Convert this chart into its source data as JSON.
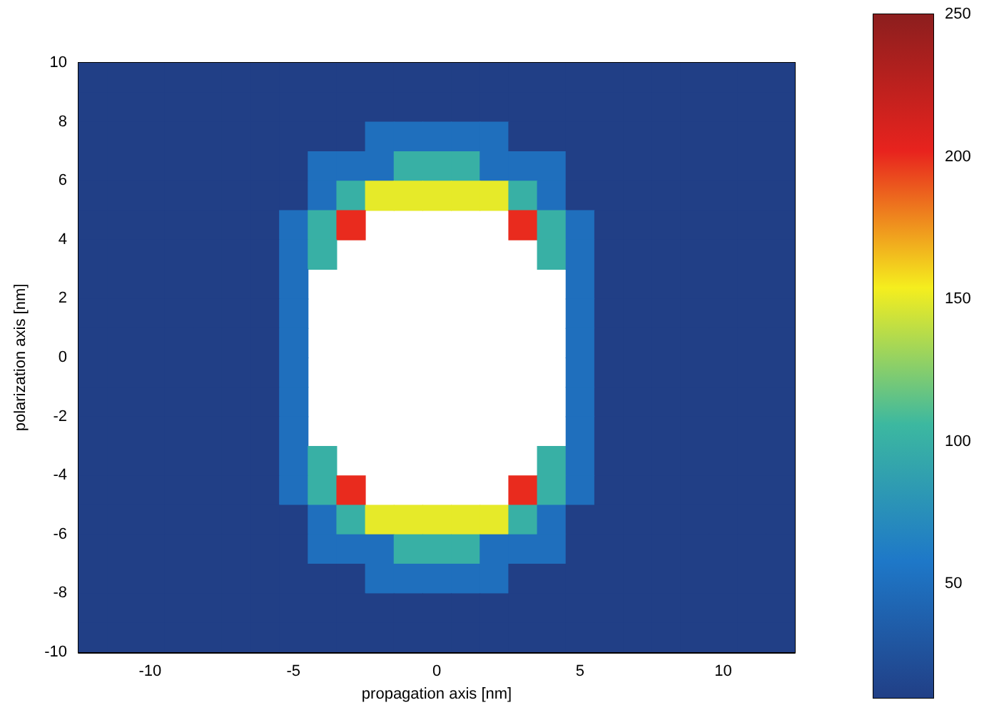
{
  "chart_data": {
    "type": "heatmap",
    "xlabel": "propagation axis [nm]",
    "ylabel": "polarization axis [nm]",
    "x": [
      -12,
      -11,
      -10,
      -9,
      -8,
      -7,
      -6,
      -5,
      -4,
      -3,
      -2,
      -1,
      0,
      1,
      2,
      3,
      4,
      5,
      6,
      7,
      8,
      9,
      10,
      11,
      12
    ],
    "y": [
      9.5,
      8.5,
      7.5,
      6.5,
      5.5,
      4.5,
      3.5,
      2.5,
      1.5,
      0.5,
      -0.5,
      -1.5,
      -2.5,
      -3.5,
      -4.5,
      -5.5,
      -6.5,
      -7.5,
      -8.5,
      -9.5
    ],
    "cells": [
      [
        10,
        10,
        10,
        10,
        10,
        10,
        10,
        10,
        10,
        10,
        10,
        10,
        10,
        10,
        10,
        10,
        10,
        10,
        10,
        10,
        10,
        10,
        10,
        10,
        10
      ],
      [
        10,
        10,
        10,
        10,
        10,
        10,
        10,
        10,
        10,
        10,
        10,
        10,
        10,
        10,
        10,
        10,
        10,
        10,
        10,
        10,
        10,
        10,
        10,
        10,
        10
      ],
      [
        10,
        10,
        10,
        10,
        10,
        10,
        10,
        10,
        10,
        10,
        50,
        50,
        50,
        50,
        50,
        10,
        10,
        10,
        10,
        10,
        10,
        10,
        10,
        10,
        10
      ],
      [
        10,
        10,
        10,
        10,
        10,
        10,
        10,
        10,
        50,
        50,
        50,
        100,
        100,
        100,
        50,
        50,
        50,
        10,
        10,
        10,
        10,
        10,
        10,
        10,
        10
      ],
      [
        10,
        10,
        10,
        10,
        10,
        10,
        10,
        10,
        50,
        100,
        150,
        150,
        150,
        150,
        150,
        100,
        50,
        10,
        10,
        10,
        10,
        10,
        10,
        10,
        10
      ],
      [
        10,
        10,
        10,
        10,
        10,
        10,
        10,
        50,
        100,
        200,
        null,
        null,
        null,
        null,
        null,
        200,
        100,
        50,
        10,
        10,
        10,
        10,
        10,
        10,
        10
      ],
      [
        10,
        10,
        10,
        10,
        10,
        10,
        10,
        50,
        100,
        null,
        null,
        null,
        null,
        null,
        null,
        null,
        100,
        50,
        10,
        10,
        10,
        10,
        10,
        10,
        10
      ],
      [
        10,
        10,
        10,
        10,
        10,
        10,
        10,
        50,
        null,
        null,
        null,
        null,
        null,
        null,
        null,
        null,
        null,
        50,
        10,
        10,
        10,
        10,
        10,
        10,
        10
      ],
      [
        10,
        10,
        10,
        10,
        10,
        10,
        10,
        50,
        null,
        null,
        null,
        null,
        null,
        null,
        null,
        null,
        null,
        50,
        10,
        10,
        10,
        10,
        10,
        10,
        10
      ],
      [
        10,
        10,
        10,
        10,
        10,
        10,
        10,
        50,
        null,
        null,
        null,
        null,
        null,
        null,
        null,
        null,
        null,
        50,
        10,
        10,
        10,
        10,
        10,
        10,
        10
      ],
      [
        10,
        10,
        10,
        10,
        10,
        10,
        10,
        50,
        null,
        null,
        null,
        null,
        null,
        null,
        null,
        null,
        null,
        50,
        10,
        10,
        10,
        10,
        10,
        10,
        10
      ],
      [
        10,
        10,
        10,
        10,
        10,
        10,
        10,
        50,
        null,
        null,
        null,
        null,
        null,
        null,
        null,
        null,
        null,
        50,
        10,
        10,
        10,
        10,
        10,
        10,
        10
      ],
      [
        10,
        10,
        10,
        10,
        10,
        10,
        10,
        50,
        null,
        null,
        null,
        null,
        null,
        null,
        null,
        null,
        null,
        50,
        10,
        10,
        10,
        10,
        10,
        10,
        10
      ],
      [
        10,
        10,
        10,
        10,
        10,
        10,
        10,
        50,
        100,
        null,
        null,
        null,
        null,
        null,
        null,
        null,
        100,
        50,
        10,
        10,
        10,
        10,
        10,
        10,
        10
      ],
      [
        10,
        10,
        10,
        10,
        10,
        10,
        10,
        50,
        100,
        200,
        null,
        null,
        null,
        null,
        null,
        200,
        100,
        50,
        10,
        10,
        10,
        10,
        10,
        10,
        10
      ],
      [
        10,
        10,
        10,
        10,
        10,
        10,
        10,
        10,
        50,
        100,
        150,
        150,
        150,
        150,
        150,
        100,
        50,
        10,
        10,
        10,
        10,
        10,
        10,
        10,
        10
      ],
      [
        10,
        10,
        10,
        10,
        10,
        10,
        10,
        10,
        50,
        50,
        50,
        100,
        100,
        100,
        50,
        50,
        50,
        10,
        10,
        10,
        10,
        10,
        10,
        10,
        10
      ],
      [
        10,
        10,
        10,
        10,
        10,
        10,
        10,
        10,
        10,
        10,
        50,
        50,
        50,
        50,
        50,
        10,
        10,
        10,
        10,
        10,
        10,
        10,
        10,
        10,
        10
      ],
      [
        10,
        10,
        10,
        10,
        10,
        10,
        10,
        10,
        10,
        10,
        10,
        10,
        10,
        10,
        10,
        10,
        10,
        10,
        10,
        10,
        10,
        10,
        10,
        10,
        10
      ],
      [
        10,
        10,
        10,
        10,
        10,
        10,
        10,
        10,
        10,
        10,
        10,
        10,
        10,
        10,
        10,
        10,
        10,
        10,
        10,
        10,
        10,
        10,
        10,
        10,
        10
      ]
    ],
    "xlim": [
      -12.5,
      12.5
    ],
    "xticks": [
      -10,
      -5,
      0,
      5,
      10
    ],
    "ylim": [
      -10,
      10
    ],
    "yticks": [
      -10,
      -8,
      -6,
      -4,
      -2,
      0,
      2,
      4,
      6,
      8,
      10
    ],
    "clim": [
      10,
      250
    ],
    "cticks": [
      50,
      100,
      150,
      200,
      250
    ]
  }
}
